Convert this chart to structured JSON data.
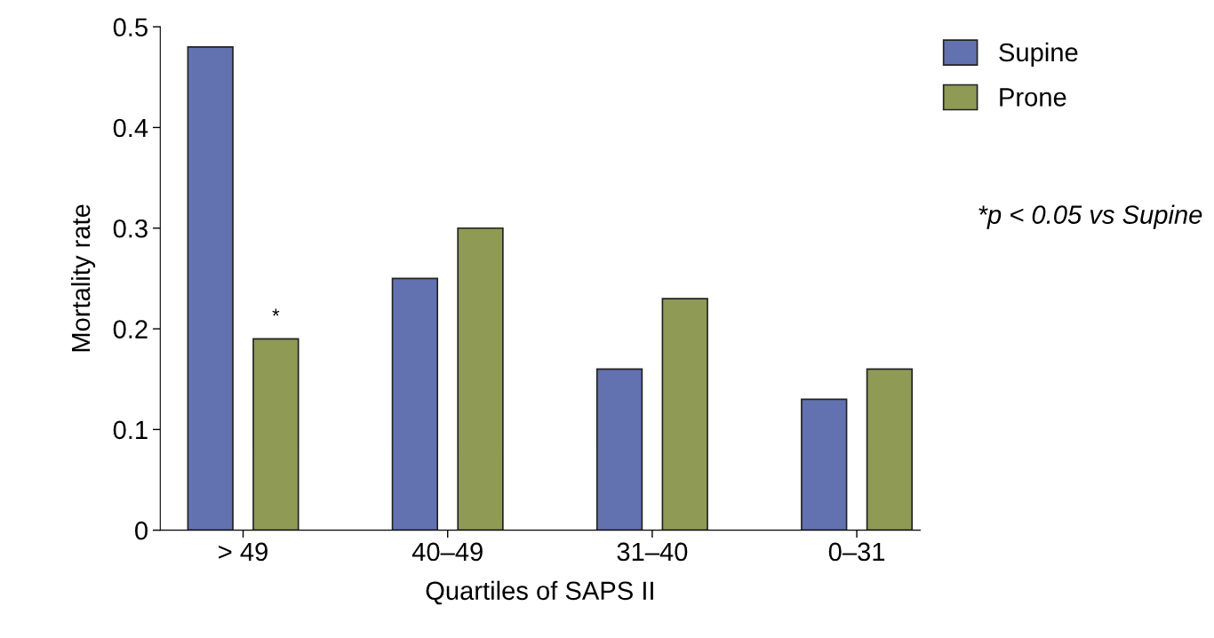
{
  "chart_data": {
    "type": "bar",
    "xlabel": "Quartiles of SAPS II",
    "ylabel": "Mortality rate",
    "categories": [
      "> 49",
      "40–49",
      "31–40",
      "0–31"
    ],
    "series": [
      {
        "name": "Supine",
        "color": "#6272b0",
        "values": [
          0.48,
          0.25,
          0.16,
          0.13
        ]
      },
      {
        "name": "Prone",
        "color": "#8f9a55",
        "values": [
          0.19,
          0.3,
          0.23,
          0.16
        ],
        "value_labels": [
          "*",
          null,
          null,
          null
        ]
      }
    ],
    "ylim": [
      0,
      0.5
    ],
    "yticks": [
      0,
      0.1,
      0.2,
      0.3,
      0.4,
      0.5
    ],
    "grid": false,
    "legend": "top right",
    "annotations": [
      "*p < 0.05 vs Supine"
    ]
  }
}
